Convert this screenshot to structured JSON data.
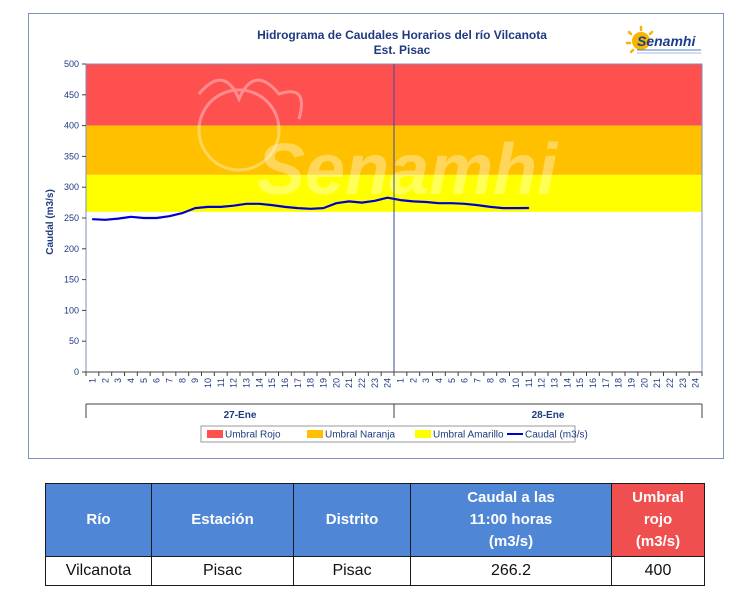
{
  "chart_data": {
    "type": "line",
    "title": "Hidrograma de Caudales Horarios del río Vilcanota",
    "subtitle": "Est. Pisac",
    "ylabel": "Caudal  (m3/s)",
    "ylim": [
      0,
      500
    ],
    "yticks": [
      "0",
      "50",
      "100",
      "150",
      "200",
      "250",
      "300",
      "350",
      "400",
      "450",
      "500"
    ],
    "xticks": [
      "1",
      "2",
      "3",
      "4",
      "5",
      "6",
      "7",
      "8",
      "9",
      "10",
      "11",
      "12",
      "13",
      "14",
      "15",
      "16",
      "17",
      "18",
      "19",
      "20",
      "21",
      "22",
      "23",
      "24",
      "1",
      "2",
      "3",
      "4",
      "5",
      "6",
      "7",
      "8",
      "9",
      "10",
      "11",
      "12",
      "13",
      "14",
      "15",
      "16",
      "17",
      "18",
      "19",
      "20",
      "21",
      "22",
      "23",
      "24"
    ],
    "days": [
      "27-Ene",
      "28-Ene"
    ],
    "bands": [
      {
        "name": "Umbral Rojo",
        "from": 400,
        "to": 500,
        "color": "#ff5050"
      },
      {
        "name": "Umbral Naranja",
        "from": 320,
        "to": 400,
        "color": "#ffc000"
      },
      {
        "name": "Umbral Amarillo",
        "from": 260,
        "to": 320,
        "color": "#ffff00"
      }
    ],
    "series": [
      {
        "name": "Caudal (m3/s)",
        "color": "#0000cc",
        "x": [
          1,
          2,
          3,
          4,
          5,
          6,
          7,
          8,
          9,
          10,
          11,
          12,
          13,
          14,
          15,
          16,
          17,
          18,
          19,
          20,
          21,
          22,
          23,
          24,
          25,
          26,
          27,
          28,
          29,
          30,
          31,
          32,
          33,
          34,
          35
        ],
        "values": [
          248,
          247,
          249,
          252,
          250,
          250,
          253,
          258,
          266,
          268,
          268,
          270,
          273,
          273,
          271,
          268,
          266,
          265,
          266,
          274,
          277,
          275,
          278,
          283,
          279,
          277,
          276,
          274,
          274,
          273,
          271,
          268,
          266,
          266,
          266.2
        ]
      }
    ],
    "legend": {
      "position": "bottom",
      "items": [
        {
          "label": "Umbral Rojo",
          "color": "#ff5050",
          "type": "box"
        },
        {
          "label": "Umbral Naranja",
          "color": "#ffc000",
          "type": "box"
        },
        {
          "label": "Umbral Amarillo",
          "color": "#ffff00",
          "type": "box"
        },
        {
          "label": "Caudal (m3/s)",
          "color": "#0000cc",
          "type": "line"
        }
      ]
    },
    "grid": false
  },
  "logo": {
    "text": "Senamhi"
  },
  "watermark": {
    "text": "Senamhi"
  },
  "table": {
    "headers": {
      "rio": "Río",
      "estacion": "Estación",
      "distrito": "Distrito",
      "caudal_1": "Caudal a las",
      "caudal_2": "11:00 horas",
      "caudal_3": "(m3/s)",
      "umbral_1": "Umbral rojo",
      "umbral_2": "(m3/s)"
    },
    "row": {
      "rio": "Vilcanota",
      "estacion": "Pisac",
      "distrito": "Pisac",
      "caudal": "266.2",
      "umbral": "400"
    }
  }
}
